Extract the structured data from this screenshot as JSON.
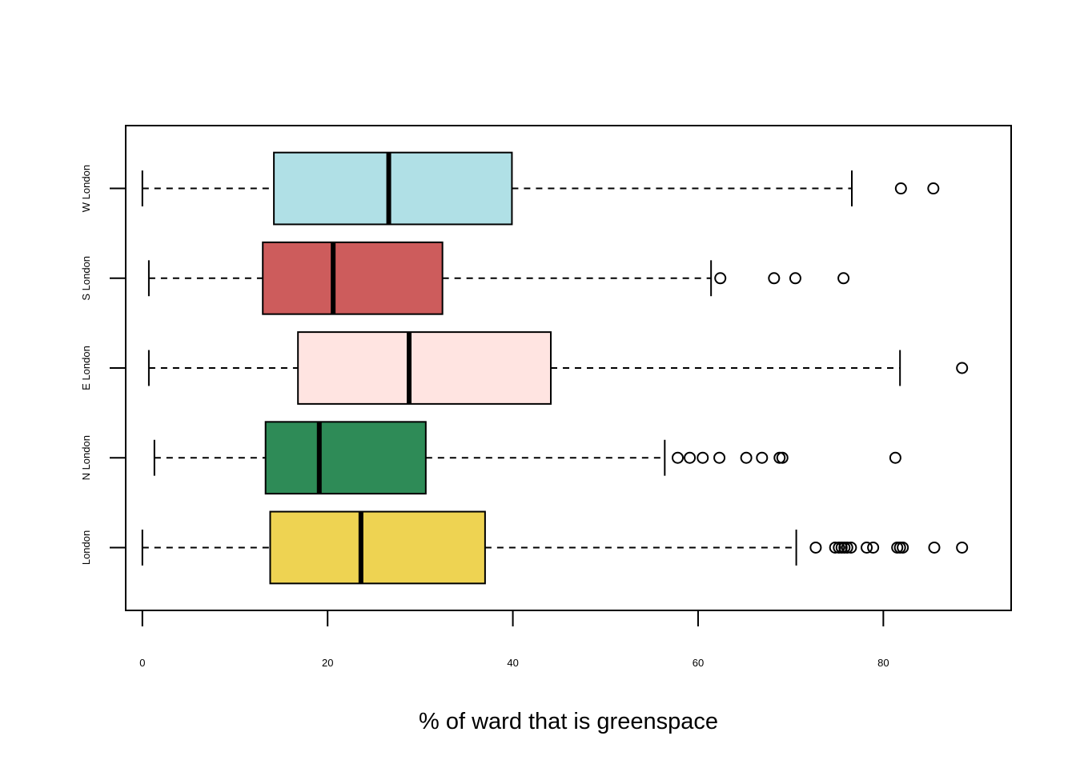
{
  "chart_data": {
    "type": "boxplot",
    "orientation": "horizontal",
    "title": "",
    "xlabel": "% of ward that is greenspace",
    "ylabel": "",
    "xlim": [
      -1.8,
      93.8
    ],
    "x_ticks": [
      0,
      20,
      40,
      60,
      80
    ],
    "x_tick_labels": [
      "0",
      "20",
      "40",
      "60",
      "80"
    ],
    "grid": false,
    "series": [
      {
        "name": "London",
        "color": "#EED352",
        "whisker_low": 0.0,
        "q1": 13.8,
        "median": 23.6,
        "q3": 37.0,
        "whisker_high": 70.6,
        "outliers": [
          72.7,
          74.8,
          75.2,
          75.5,
          75.8,
          76.1,
          76.5,
          78.2,
          78.9,
          81.5,
          81.8,
          82.1,
          85.5,
          88.5
        ]
      },
      {
        "name": "N London",
        "color": "#2E8B57",
        "whisker_low": 1.3,
        "q1": 13.3,
        "median": 19.1,
        "q3": 30.6,
        "whisker_high": 56.4,
        "outliers": [
          57.8,
          59.1,
          60.5,
          62.3,
          65.2,
          66.9,
          68.8,
          69.1,
          81.3
        ]
      },
      {
        "name": "E London",
        "color": "#FFE4E1",
        "whisker_low": 0.7,
        "q1": 16.8,
        "median": 28.8,
        "q3": 44.1,
        "whisker_high": 81.8,
        "outliers": [
          88.5
        ]
      },
      {
        "name": "S London",
        "color": "#CD5C5C",
        "whisker_low": 0.7,
        "q1": 13.0,
        "median": 20.6,
        "q3": 32.4,
        "whisker_high": 61.4,
        "outliers": [
          62.4,
          68.2,
          70.5,
          75.7
        ]
      },
      {
        "name": "W London",
        "color": "#B0E0E6",
        "whisker_low": 0.0,
        "q1": 14.2,
        "median": 26.6,
        "q3": 39.9,
        "whisker_high": 76.6,
        "outliers": [
          81.9,
          85.4
        ]
      }
    ]
  }
}
